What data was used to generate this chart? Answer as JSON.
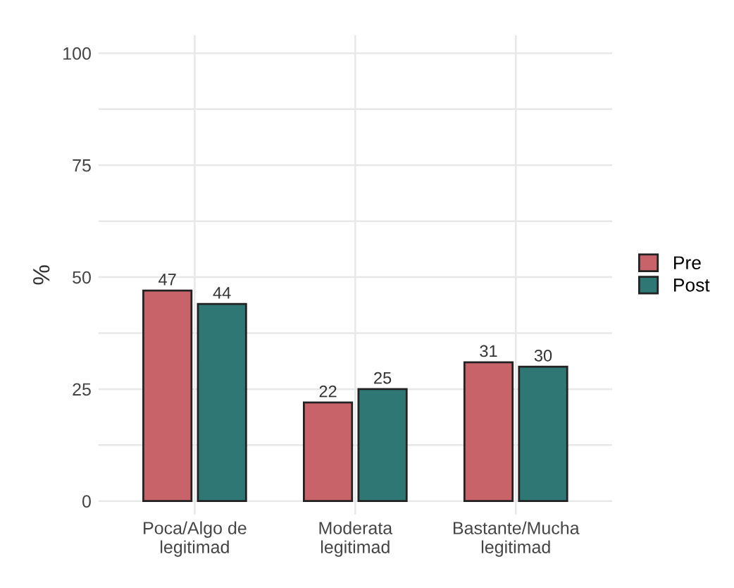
{
  "chart_data": {
    "type": "bar",
    "ylabel": "%",
    "categories": [
      "Poca/Algo de\nlegitimad",
      "Moderata\nlegitimad",
      "Bastante/Mucha\nlegitimad"
    ],
    "series": [
      {
        "name": "Pre",
        "color": "#c8636a",
        "values": [
          47,
          22,
          31
        ]
      },
      {
        "name": "Post",
        "color": "#2f7775",
        "values": [
          44,
          25,
          30
        ]
      }
    ],
    "ylim": [
      -3,
      104
    ],
    "yticks": [
      0,
      {
        "value": 12.5,
        "label": null
      },
      25,
      {
        "value": 37.5,
        "label": null
      },
      50,
      {
        "value": 62.5,
        "label": null
      },
      75,
      {
        "value": 87.5,
        "label": null
      },
      100
    ],
    "grid": true,
    "legend": "right",
    "data_labels": true
  }
}
